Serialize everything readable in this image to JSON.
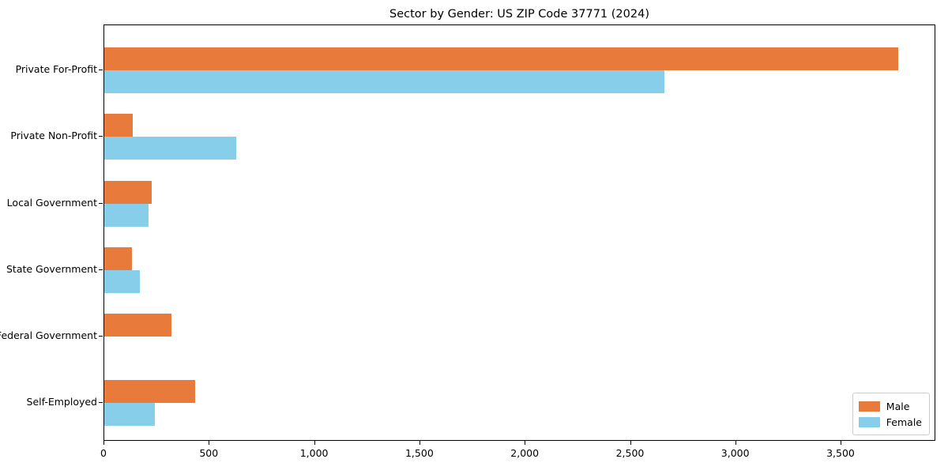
{
  "chart_data": {
    "type": "bar",
    "orientation": "horizontal",
    "title": "Sector by Gender: US ZIP Code 37771 (2024)",
    "categories": [
      "Private For-Profit",
      "Private Non-Profit",
      "Local Government",
      "State Government",
      "Federal Government",
      "Self-Employed"
    ],
    "series": [
      {
        "name": "Male",
        "color": "#e87a3c",
        "values": [
          3770,
          135,
          225,
          130,
          320,
          430
        ]
      },
      {
        "name": "Female",
        "color": "#87ceeb",
        "values": [
          2660,
          625,
          210,
          170,
          0,
          240
        ]
      }
    ],
    "xlabel": "",
    "ylabel": "",
    "xlim": [
      0,
      3950
    ],
    "x_ticks": [
      0,
      500,
      1000,
      1500,
      2000,
      2500,
      3000,
      3500
    ],
    "x_tick_labels": [
      "0",
      "500",
      "1,000",
      "1,500",
      "2,000",
      "2,500",
      "3,000",
      "3,500"
    ],
    "grid": false,
    "legend_position": "lower right",
    "axis_color": "#000000",
    "background_color": "#ffffff"
  }
}
